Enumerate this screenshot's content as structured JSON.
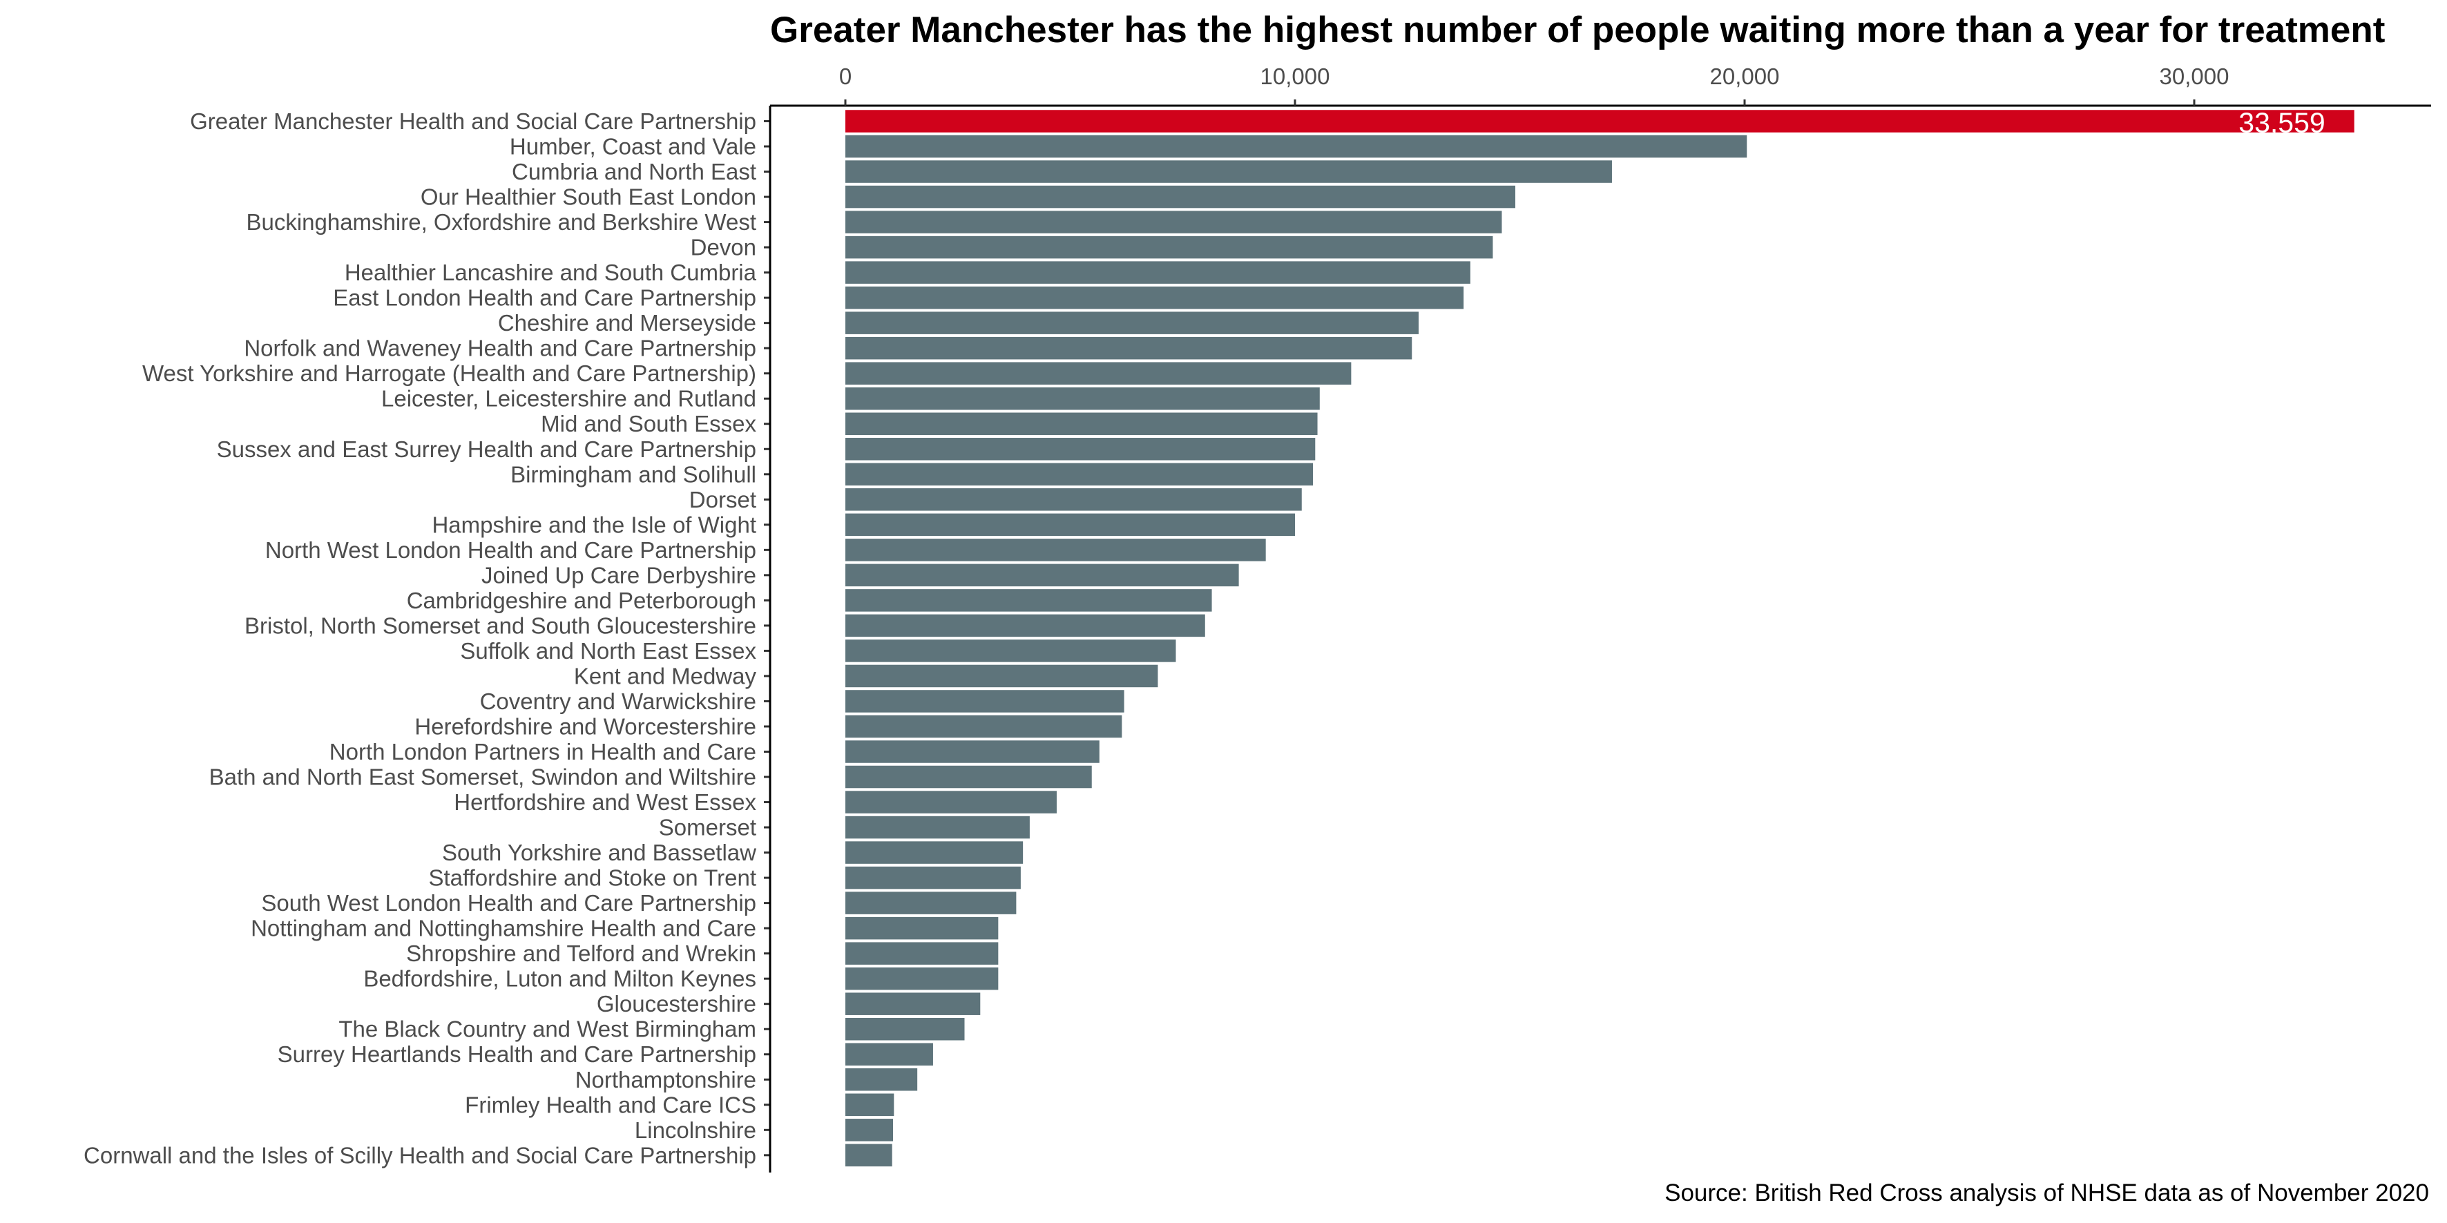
{
  "chart_data": {
    "type": "bar",
    "orientation": "horizontal",
    "title": "Greater Manchester has the highest number of people waiting more than a year for treatment",
    "caption": "Source: British Red Cross analysis of NHSE data as of November 2020",
    "xlabel": "",
    "ylabel": "",
    "xlim": [
      0,
      35000
    ],
    "x_ticks": [
      0,
      10000,
      20000,
      30000
    ],
    "x_tick_labels": [
      "0",
      "10,000",
      "20,000",
      "30,000"
    ],
    "x_axis_position": "top",
    "grid": false,
    "highlight_color": "#d0021b",
    "bar_color": "#5e747b",
    "categories": [
      "Greater Manchester Health and Social Care Partnership",
      "Humber, Coast and Vale",
      "Cumbria and North East",
      "Our Healthier South East London",
      "Buckinghamshire, Oxfordshire and Berkshire West",
      "Devon",
      "Healthier Lancashire and South Cumbria",
      "East London Health and Care Partnership",
      "Cheshire and Merseyside",
      "Norfolk and Waveney Health and Care Partnership",
      "West Yorkshire and Harrogate (Health and Care Partnership)",
      "Leicester, Leicestershire and Rutland",
      "Mid and South Essex",
      "Sussex and East Surrey Health and Care Partnership",
      "Birmingham and Solihull",
      "Dorset",
      "Hampshire and the Isle of Wight",
      "North West London Health and Care Partnership",
      "Joined Up Care Derbyshire",
      "Cambridgeshire and Peterborough",
      "Bristol, North Somerset and South Gloucestershire",
      "Suffolk and North East Essex",
      "Kent and Medway",
      "Coventry and Warwickshire",
      "Herefordshire and Worcestershire",
      "North London Partners in Health and Care",
      "Bath and North East Somerset, Swindon and Wiltshire",
      "Hertfordshire and West Essex",
      "Somerset",
      "South Yorkshire and Bassetlaw",
      "Staffordshire and Stoke on Trent",
      "South West London Health and Care Partnership",
      "Nottingham and Nottinghamshire Health and Care",
      "Shropshire and Telford and Wrekin",
      "Bedfordshire, Luton and Milton Keynes",
      "Gloucestershire",
      "The Black Country and West Birmingham",
      "Surrey Heartlands Health and Care Partnership",
      "Northamptonshire",
      "Frimley Health and Care ICS",
      "Lincolnshire",
      "Cornwall and the Isles of Scilly Health and Social Care Partnership"
    ],
    "values": [
      33559,
      20050,
      17050,
      14900,
      14600,
      14400,
      13900,
      13750,
      12750,
      12600,
      11250,
      10550,
      10500,
      10450,
      10400,
      10150,
      10000,
      9350,
      8750,
      8150,
      8000,
      7350,
      6950,
      6200,
      6150,
      5650,
      5480,
      4700,
      4100,
      3950,
      3900,
      3800,
      3400,
      3400,
      3400,
      3000,
      2650,
      1950,
      1600,
      1080,
      1060,
      1040
    ],
    "highlighted_index": 0,
    "data_labels": [
      {
        "index": 0,
        "text": "33,559"
      }
    ]
  }
}
